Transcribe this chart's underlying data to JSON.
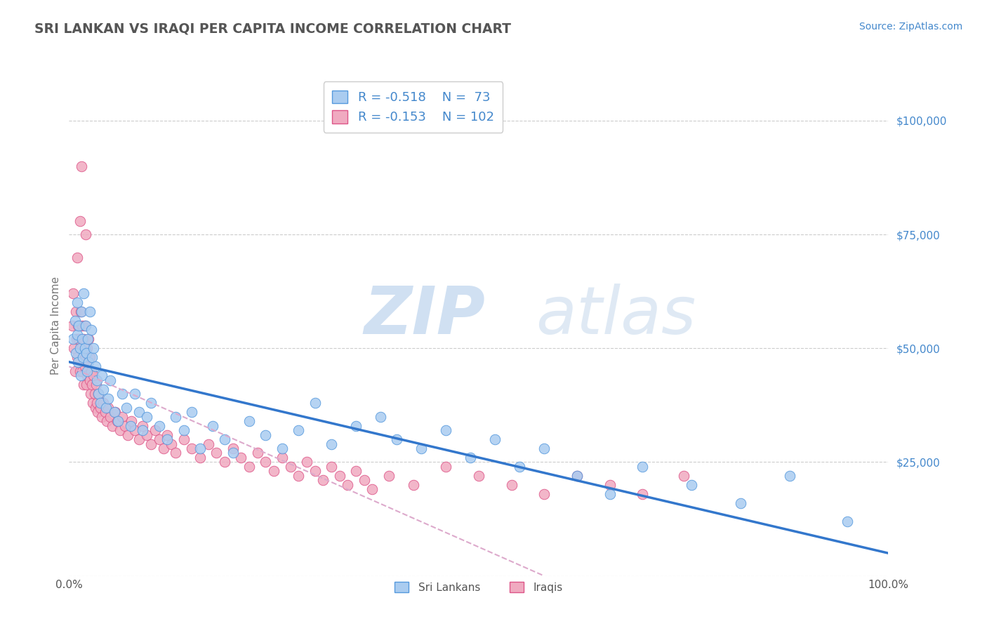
{
  "title": "SRI LANKAN VS IRAQI PER CAPITA INCOME CORRELATION CHART",
  "source_text": "Source: ZipAtlas.com",
  "ylabel": "Per Capita Income",
  "xlim": [
    0.0,
    1.0
  ],
  "ylim": [
    0,
    110000
  ],
  "yticks": [
    0,
    25000,
    50000,
    75000,
    100000
  ],
  "ytick_labels": [
    "",
    "$25,000",
    "$50,000",
    "$75,000",
    "$100,000"
  ],
  "xtick_labels": [
    "0.0%",
    "100.0%"
  ],
  "background_color": "#ffffff",
  "grid_color": "#cccccc",
  "title_color": "#555555",
  "sri_lankan_color": "#aaccf0",
  "iraqi_color": "#f0aac0",
  "sri_lankan_edge_color": "#5599dd",
  "iraqi_edge_color": "#dd5588",
  "sri_lankan_line_color": "#3377cc",
  "iraqi_line_color": "#ddaacc",
  "sri_lankan_R": -0.518,
  "iraqi_R": -0.153,
  "sri_lankan_N": 73,
  "iraqi_N": 102,
  "legend_label_1": "Sri Lankans",
  "legend_label_2": "Iraqis",
  "watermark_zip": "ZIP",
  "watermark_atlas": "atlas",
  "watermark_color": "#c8dff0",
  "label_color": "#4488cc",
  "sri_lankans_x": [
    0.005,
    0.007,
    0.008,
    0.01,
    0.01,
    0.011,
    0.012,
    0.013,
    0.014,
    0.015,
    0.016,
    0.017,
    0.018,
    0.019,
    0.02,
    0.021,
    0.022,
    0.023,
    0.024,
    0.025,
    0.027,
    0.028,
    0.03,
    0.032,
    0.034,
    0.036,
    0.038,
    0.04,
    0.042,
    0.045,
    0.048,
    0.05,
    0.055,
    0.06,
    0.065,
    0.07,
    0.075,
    0.08,
    0.085,
    0.09,
    0.095,
    0.1,
    0.11,
    0.12,
    0.13,
    0.14,
    0.15,
    0.16,
    0.175,
    0.19,
    0.2,
    0.22,
    0.24,
    0.26,
    0.28,
    0.3,
    0.32,
    0.35,
    0.38,
    0.4,
    0.43,
    0.46,
    0.49,
    0.52,
    0.55,
    0.58,
    0.62,
    0.66,
    0.7,
    0.76,
    0.82,
    0.88,
    0.95
  ],
  "sri_lankans_y": [
    52000,
    56000,
    49000,
    60000,
    53000,
    47000,
    55000,
    50000,
    44000,
    58000,
    52000,
    48000,
    62000,
    50000,
    55000,
    49000,
    45000,
    52000,
    47000,
    58000,
    54000,
    48000,
    50000,
    46000,
    43000,
    40000,
    38000,
    44000,
    41000,
    37000,
    39000,
    43000,
    36000,
    34000,
    40000,
    37000,
    33000,
    40000,
    36000,
    32000,
    35000,
    38000,
    33000,
    30000,
    35000,
    32000,
    36000,
    28000,
    33000,
    30000,
    27000,
    34000,
    31000,
    28000,
    32000,
    38000,
    29000,
    33000,
    35000,
    30000,
    28000,
    32000,
    26000,
    30000,
    24000,
    28000,
    22000,
    18000,
    24000,
    20000,
    16000,
    22000,
    12000
  ],
  "iraqis_x": [
    0.004,
    0.005,
    0.006,
    0.007,
    0.008,
    0.009,
    0.01,
    0.01,
    0.011,
    0.012,
    0.013,
    0.013,
    0.014,
    0.015,
    0.015,
    0.016,
    0.016,
    0.017,
    0.018,
    0.018,
    0.019,
    0.019,
    0.02,
    0.02,
    0.021,
    0.022,
    0.022,
    0.023,
    0.024,
    0.025,
    0.025,
    0.026,
    0.027,
    0.028,
    0.029,
    0.03,
    0.031,
    0.032,
    0.033,
    0.034,
    0.035,
    0.036,
    0.038,
    0.04,
    0.042,
    0.044,
    0.046,
    0.048,
    0.05,
    0.053,
    0.056,
    0.059,
    0.062,
    0.065,
    0.068,
    0.072,
    0.076,
    0.08,
    0.085,
    0.09,
    0.095,
    0.1,
    0.105,
    0.11,
    0.115,
    0.12,
    0.125,
    0.13,
    0.14,
    0.15,
    0.16,
    0.17,
    0.18,
    0.19,
    0.2,
    0.21,
    0.22,
    0.23,
    0.24,
    0.25,
    0.26,
    0.27,
    0.28,
    0.29,
    0.3,
    0.31,
    0.32,
    0.33,
    0.34,
    0.35,
    0.36,
    0.37,
    0.39,
    0.42,
    0.46,
    0.5,
    0.54,
    0.58,
    0.62,
    0.66,
    0.7,
    0.75
  ],
  "iraqis_y": [
    55000,
    62000,
    50000,
    45000,
    58000,
    52000,
    70000,
    48000,
    55000,
    52000,
    78000,
    45000,
    58000,
    90000,
    50000,
    55000,
    45000,
    48000,
    52000,
    42000,
    46000,
    55000,
    75000,
    48000,
    42000,
    50000,
    44000,
    47000,
    52000,
    43000,
    48000,
    40000,
    45000,
    42000,
    38000,
    44000,
    40000,
    37000,
    42000,
    38000,
    36000,
    40000,
    37000,
    35000,
    38000,
    36000,
    34000,
    37000,
    35000,
    33000,
    36000,
    34000,
    32000,
    35000,
    33000,
    31000,
    34000,
    32000,
    30000,
    33000,
    31000,
    29000,
    32000,
    30000,
    28000,
    31000,
    29000,
    27000,
    30000,
    28000,
    26000,
    29000,
    27000,
    25000,
    28000,
    26000,
    24000,
    27000,
    25000,
    23000,
    26000,
    24000,
    22000,
    25000,
    23000,
    21000,
    24000,
    22000,
    20000,
    23000,
    21000,
    19000,
    22000,
    20000,
    24000,
    22000,
    20000,
    18000,
    22000,
    20000,
    18000,
    22000
  ]
}
